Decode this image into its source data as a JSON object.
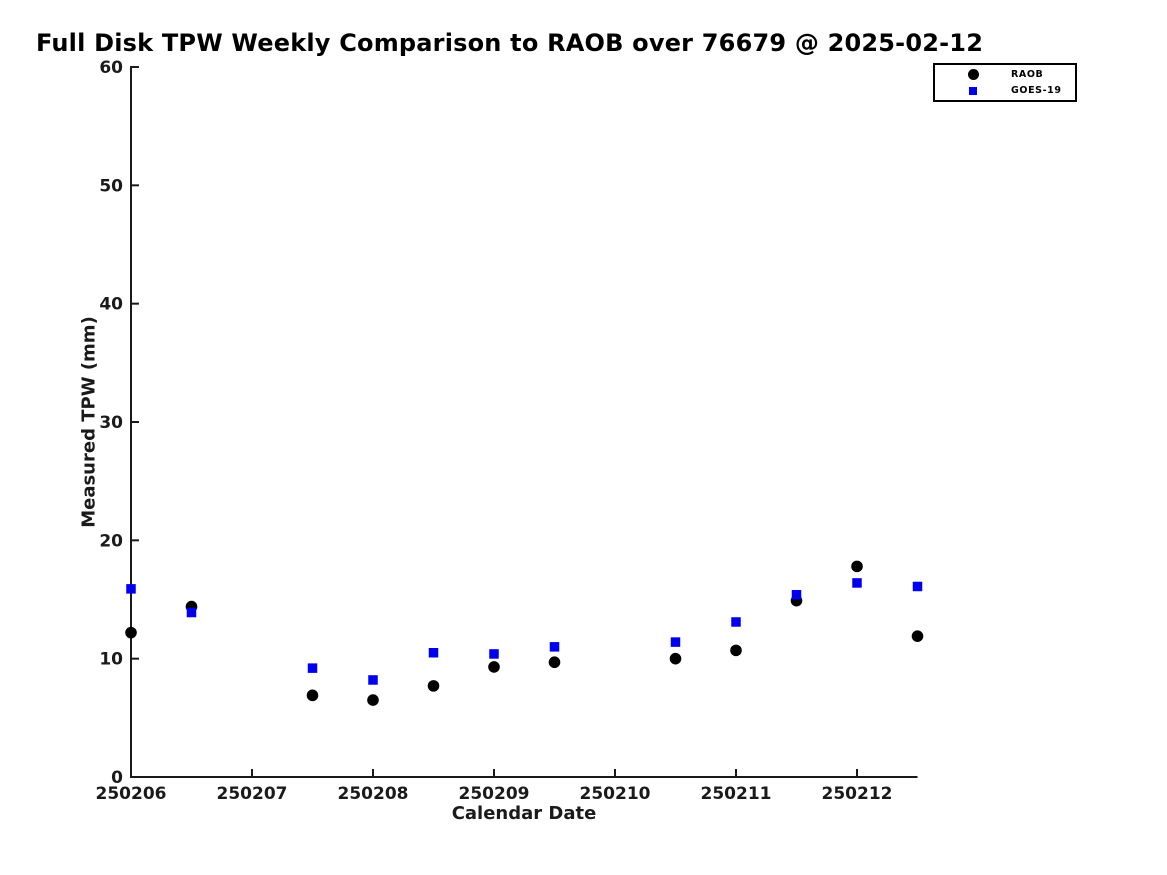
{
  "chart_data": {
    "type": "scatter",
    "title": "Full Disk TPW Weekly Comparison to RAOB over 76679 @ 2025-02-12",
    "xlabel": "Calendar Date",
    "ylabel": "Measured TPW (mm)",
    "xlim": [
      250206,
      250212.5
    ],
    "ylim": [
      0,
      60
    ],
    "x_ticks": [
      250206,
      250207,
      250208,
      250209,
      250210,
      250211,
      250212
    ],
    "x_tick_labels": [
      "250206",
      "250207",
      "250208",
      "250209",
      "250210",
      "250211",
      "250212"
    ],
    "y_ticks": [
      0,
      10,
      20,
      30,
      40,
      50,
      60
    ],
    "y_tick_labels": [
      "0",
      "10",
      "20",
      "30",
      "40",
      "50",
      "60"
    ],
    "grid": false,
    "legend_position": "top-right",
    "x": [
      250206.0,
      250206.5,
      250207.5,
      250208.0,
      250208.5,
      250209.0,
      250209.5,
      250210.5,
      250211.0,
      250211.5,
      250212.0,
      250212.5
    ],
    "series": [
      {
        "name": "RAOB",
        "marker": "circle",
        "color": "#000000",
        "values": [
          12.2,
          14.4,
          6.9,
          6.5,
          7.7,
          9.3,
          9.7,
          10.0,
          10.7,
          14.9,
          17.8,
          11.9
        ]
      },
      {
        "name": "GOES-19",
        "marker": "square",
        "color": "#0000ee",
        "values": [
          15.9,
          13.9,
          9.2,
          8.2,
          10.5,
          10.4,
          11.0,
          11.4,
          13.1,
          15.4,
          16.4,
          16.1
        ]
      }
    ]
  }
}
